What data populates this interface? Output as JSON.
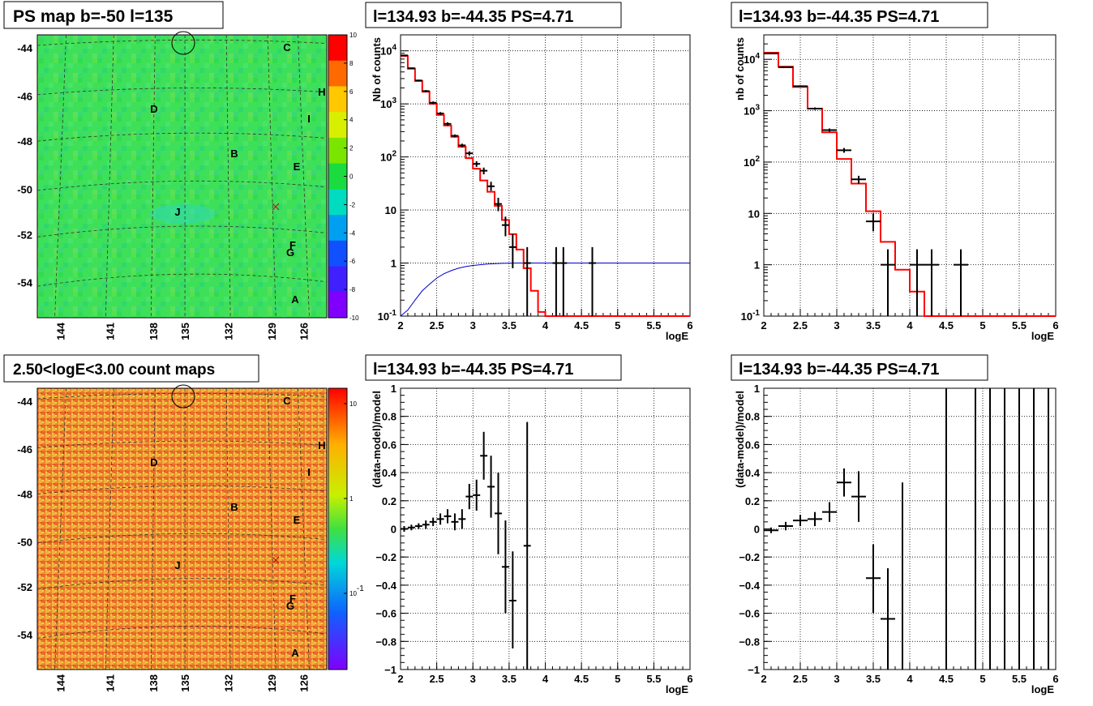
{
  "panels": {
    "ps_map": {
      "title": "PS map b=-50 l=135",
      "y_ticks": [
        "-44",
        "-46",
        "-48",
        "-50",
        "-52",
        "-54"
      ],
      "x_ticks": [
        "144",
        "141",
        "138",
        "135",
        "132",
        "129",
        "126"
      ],
      "colorbar_ticks": [
        "10",
        "8",
        "6",
        "4",
        "2",
        "0",
        "-2",
        "-4",
        "-6",
        "-8",
        "-10"
      ],
      "colorbar_colors": [
        "#ff0000",
        "#ff6a00",
        "#ffc800",
        "#d8f000",
        "#7ae600",
        "#1adc40",
        "#00dcc0",
        "#00a0f0",
        "#1050ff",
        "#4020ff",
        "#8000ff"
      ],
      "source_labels": [
        "C",
        "H",
        "D",
        "I",
        "B",
        "E",
        "J",
        "F",
        "G",
        "A"
      ]
    },
    "count_map": {
      "title": "2.50<logE<3.00 count maps",
      "y_ticks": [
        "-44",
        "-46",
        "-48",
        "-50",
        "-52",
        "-54"
      ],
      "x_ticks": [
        "144",
        "141",
        "138",
        "135",
        "132",
        "129",
        "126"
      ],
      "colorbar_ticks": [
        "10",
        "1",
        "10^-1"
      ],
      "source_labels": [
        "C",
        "H",
        "D",
        "I",
        "B",
        "E",
        "J",
        "F",
        "G",
        "A"
      ]
    }
  },
  "chart_data": [
    {
      "type": "line",
      "title": "l=134.93 b=-44.35 PS=4.71",
      "xlabel": "logE",
      "ylabel": "Nb of counts",
      "xlim": [
        2,
        6
      ],
      "ylim": [
        0.1,
        20000
      ],
      "yscale": "log",
      "grid": true,
      "x_ticks": [
        "2",
        "2.5",
        "3",
        "3.5",
        "4",
        "4.5",
        "5",
        "5.5",
        "6"
      ],
      "y_ticks": [
        "10^-1",
        "1",
        "10",
        "10^2",
        "10^3",
        "10^4"
      ],
      "model_steps": {
        "bin_edges": [
          2.0,
          2.1,
          2.2,
          2.3,
          2.4,
          2.5,
          2.6,
          2.7,
          2.8,
          2.9,
          3.0,
          3.1,
          3.2,
          3.3,
          3.4,
          3.5,
          3.6,
          3.7,
          3.8,
          3.9,
          4.0,
          6.0
        ],
        "values": [
          8000,
          4600,
          2700,
          1700,
          1000,
          620,
          390,
          240,
          155,
          95,
          60,
          36,
          22,
          12,
          6.5,
          3.5,
          1.8,
          0.8,
          0.3,
          0.12,
          0.1
        ]
      },
      "data_points": [
        {
          "x": 2.05,
          "y": 8200,
          "xerr": 0.05,
          "ylo": 8000,
          "yhi": 8400
        },
        {
          "x": 2.15,
          "y": 4700,
          "xerr": 0.05,
          "ylo": 4560,
          "yhi": 4840
        },
        {
          "x": 2.25,
          "y": 2760,
          "xerr": 0.05,
          "ylo": 2660,
          "yhi": 2860
        },
        {
          "x": 2.35,
          "y": 1740,
          "xerr": 0.05,
          "ylo": 1660,
          "yhi": 1820
        },
        {
          "x": 2.45,
          "y": 1050,
          "xerr": 0.05,
          "ylo": 990,
          "yhi": 1110
        },
        {
          "x": 2.55,
          "y": 660,
          "xerr": 0.05,
          "ylo": 620,
          "yhi": 700
        },
        {
          "x": 2.65,
          "y": 420,
          "xerr": 0.05,
          "ylo": 390,
          "yhi": 450
        },
        {
          "x": 2.75,
          "y": 250,
          "xerr": 0.05,
          "ylo": 234,
          "yhi": 266
        },
        {
          "x": 2.85,
          "y": 165,
          "xerr": 0.05,
          "ylo": 152,
          "yhi": 178
        },
        {
          "x": 2.95,
          "y": 117,
          "xerr": 0.05,
          "ylo": 106,
          "yhi": 128
        },
        {
          "x": 3.05,
          "y": 74,
          "xerr": 0.05,
          "ylo": 65,
          "yhi": 83
        },
        {
          "x": 3.15,
          "y": 55,
          "xerr": 0.05,
          "ylo": 47,
          "yhi": 63
        },
        {
          "x": 3.25,
          "y": 28,
          "xerr": 0.05,
          "ylo": 23,
          "yhi": 34
        },
        {
          "x": 3.35,
          "y": 13,
          "xerr": 0.05,
          "ylo": 9.5,
          "yhi": 17
        },
        {
          "x": 3.45,
          "y": 5.2,
          "xerr": 0.05,
          "ylo": 3.2,
          "yhi": 7.5
        },
        {
          "x": 3.55,
          "y": 2.0,
          "xerr": 0.05,
          "ylo": 0.8,
          "yhi": 3.5
        },
        {
          "x": 3.75,
          "y": 1.0,
          "xerr": 0.05,
          "ylo": 0.1,
          "yhi": 2.0
        },
        {
          "x": 4.15,
          "y": 1.0,
          "xerr": 0.05,
          "ylo": 0.1,
          "yhi": 2.0
        },
        {
          "x": 4.25,
          "y": 1.0,
          "xerr": 0.05,
          "ylo": 0.1,
          "yhi": 2.0
        },
        {
          "x": 4.65,
          "y": 1.0,
          "xerr": 0.05,
          "ylo": 0.1,
          "yhi": 2.0
        }
      ],
      "efficiency_curve": {
        "x": [
          2.0,
          2.1,
          2.2,
          2.3,
          2.4,
          2.5,
          2.6,
          2.7,
          2.8,
          2.9,
          3.0,
          3.2,
          3.4,
          3.6,
          4.0,
          6.0
        ],
        "y": [
          0.1,
          0.13,
          0.2,
          0.3,
          0.4,
          0.52,
          0.63,
          0.72,
          0.8,
          0.86,
          0.9,
          0.96,
          0.99,
          1.0,
          1.0,
          1.0
        ]
      },
      "colors": {
        "model": "#ff0000",
        "data": "#000000",
        "efficiency": "#0000cc"
      }
    },
    {
      "type": "line",
      "title": "l=134.93 b=-44.35 PS=4.71",
      "xlabel": "logE",
      "ylabel": "nb of counts",
      "xlim": [
        2,
        6
      ],
      "ylim": [
        0.1,
        30000
      ],
      "yscale": "log",
      "grid": true,
      "x_ticks": [
        "2",
        "2.5",
        "3",
        "3.5",
        "4",
        "4.5",
        "5",
        "5.5",
        "6"
      ],
      "y_ticks": [
        "10^-1",
        "1",
        "10",
        "10^2",
        "10^3",
        "10^4"
      ],
      "model_steps": {
        "bin_edges": [
          2.0,
          2.2,
          2.4,
          2.6,
          2.8,
          3.0,
          3.2,
          3.4,
          3.6,
          3.8,
          4.0,
          4.2,
          6.0
        ],
        "values": [
          13500,
          7200,
          2900,
          1100,
          380,
          115,
          38,
          11,
          2.8,
          0.8,
          0.3,
          0.1
        ]
      },
      "data_points": [
        {
          "x": 2.1,
          "y": 13000,
          "xerr": 0.1,
          "ylo": 12700,
          "yhi": 13300
        },
        {
          "x": 2.3,
          "y": 7000,
          "xerr": 0.1,
          "ylo": 6800,
          "yhi": 7200
        },
        {
          "x": 2.5,
          "y": 3000,
          "xerr": 0.1,
          "ylo": 2880,
          "yhi": 3120
        },
        {
          "x": 2.7,
          "y": 1100,
          "xerr": 0.1,
          "ylo": 1040,
          "yhi": 1160
        },
        {
          "x": 2.9,
          "y": 420,
          "xerr": 0.1,
          "ylo": 390,
          "yhi": 450
        },
        {
          "x": 3.1,
          "y": 170,
          "xerr": 0.1,
          "ylo": 152,
          "yhi": 188
        },
        {
          "x": 3.3,
          "y": 46,
          "xerr": 0.1,
          "ylo": 38,
          "yhi": 54
        },
        {
          "x": 3.5,
          "y": 7.0,
          "xerr": 0.1,
          "ylo": 4.5,
          "yhi": 10
        },
        {
          "x": 3.7,
          "y": 1.0,
          "xerr": 0.1,
          "ylo": 0.1,
          "yhi": 2.0
        },
        {
          "x": 4.1,
          "y": 1.0,
          "xerr": 0.1,
          "ylo": 0.1,
          "yhi": 2.0
        },
        {
          "x": 4.3,
          "y": 1.0,
          "xerr": 0.1,
          "ylo": 0.1,
          "yhi": 2.0
        },
        {
          "x": 4.7,
          "y": 1.0,
          "xerr": 0.1,
          "ylo": 0.1,
          "yhi": 2.0
        }
      ],
      "colors": {
        "model": "#ff0000",
        "data": "#000000"
      }
    },
    {
      "type": "scatter",
      "title": "l=134.93 b=-44.35 PS=4.71",
      "xlabel": "logE",
      "ylabel": "(data-model)/model",
      "xlim": [
        2,
        6
      ],
      "ylim": [
        -1,
        1
      ],
      "grid": true,
      "x_ticks": [
        "2",
        "2.5",
        "3",
        "3.5",
        "4",
        "4.5",
        "5",
        "5.5",
        "6"
      ],
      "y_ticks": [
        "1",
        "0.8",
        "0.6",
        "0.4",
        "0.2",
        "0",
        "−0.2",
        "−0.4",
        "−0.6",
        "−0.8",
        "−1"
      ],
      "data_points": [
        {
          "x": 2.05,
          "y": 0.0,
          "xerr": 0.05,
          "ylo": -0.02,
          "yhi": 0.02
        },
        {
          "x": 2.15,
          "y": 0.01,
          "xerr": 0.05,
          "ylo": -0.01,
          "yhi": 0.03
        },
        {
          "x": 2.25,
          "y": 0.02,
          "xerr": 0.05,
          "ylo": 0.0,
          "yhi": 0.04
        },
        {
          "x": 2.35,
          "y": 0.03,
          "xerr": 0.05,
          "ylo": 0.0,
          "yhi": 0.06
        },
        {
          "x": 2.45,
          "y": 0.05,
          "xerr": 0.05,
          "ylo": 0.02,
          "yhi": 0.08
        },
        {
          "x": 2.55,
          "y": 0.07,
          "xerr": 0.05,
          "ylo": 0.03,
          "yhi": 0.11
        },
        {
          "x": 2.65,
          "y": 0.09,
          "xerr": 0.05,
          "ylo": 0.04,
          "yhi": 0.14
        },
        {
          "x": 2.75,
          "y": 0.05,
          "xerr": 0.05,
          "ylo": -0.01,
          "yhi": 0.11
        },
        {
          "x": 2.85,
          "y": 0.07,
          "xerr": 0.05,
          "ylo": 0.0,
          "yhi": 0.14
        },
        {
          "x": 2.95,
          "y": 0.23,
          "xerr": 0.05,
          "ylo": 0.14,
          "yhi": 0.32
        },
        {
          "x": 3.05,
          "y": 0.24,
          "xerr": 0.05,
          "ylo": 0.13,
          "yhi": 0.35
        },
        {
          "x": 3.15,
          "y": 0.52,
          "xerr": 0.05,
          "ylo": 0.35,
          "yhi": 0.69
        },
        {
          "x": 3.25,
          "y": 0.3,
          "xerr": 0.05,
          "ylo": 0.08,
          "yhi": 0.52
        },
        {
          "x": 3.35,
          "y": 0.11,
          "xerr": 0.05,
          "ylo": -0.18,
          "yhi": 0.4
        },
        {
          "x": 3.45,
          "y": -0.27,
          "xerr": 0.05,
          "ylo": -0.6,
          "yhi": 0.06
        },
        {
          "x": 3.55,
          "y": -0.51,
          "xerr": 0.05,
          "ylo": -0.85,
          "yhi": -0.16
        },
        {
          "x": 3.75,
          "y": -0.12,
          "xerr": 0.05,
          "ylo": -1.0,
          "yhi": 0.76
        }
      ],
      "colors": {
        "data": "#000000"
      }
    },
    {
      "type": "scatter",
      "title": "l=134.93 b=-44.35 PS=4.71",
      "xlabel": "logE",
      "ylabel": "(data-model)/model",
      "xlim": [
        2,
        6
      ],
      "ylim": [
        -1,
        1
      ],
      "grid": true,
      "x_ticks": [
        "2",
        "2.5",
        "3",
        "3.5",
        "4",
        "4.5",
        "5",
        "5.5",
        "6"
      ],
      "y_ticks": [
        "1",
        "0.8",
        "0.6",
        "0.4",
        "0.2",
        "0",
        "−0.2",
        "−0.4",
        "−0.6",
        "−0.8",
        "−1"
      ],
      "data_points": [
        {
          "x": 2.1,
          "y": -0.01,
          "xerr": 0.1,
          "ylo": -0.03,
          "yhi": 0.01
        },
        {
          "x": 2.3,
          "y": 0.02,
          "xerr": 0.1,
          "ylo": -0.01,
          "yhi": 0.05
        },
        {
          "x": 2.5,
          "y": 0.06,
          "xerr": 0.1,
          "ylo": 0.02,
          "yhi": 0.1
        },
        {
          "x": 2.7,
          "y": 0.07,
          "xerr": 0.1,
          "ylo": 0.02,
          "yhi": 0.12
        },
        {
          "x": 2.9,
          "y": 0.12,
          "xerr": 0.1,
          "ylo": 0.05,
          "yhi": 0.19
        },
        {
          "x": 3.1,
          "y": 0.33,
          "xerr": 0.1,
          "ylo": 0.23,
          "yhi": 0.43
        },
        {
          "x": 3.3,
          "y": 0.23,
          "xerr": 0.1,
          "ylo": 0.05,
          "yhi": 0.41
        },
        {
          "x": 3.5,
          "y": -0.35,
          "xerr": 0.1,
          "ylo": -0.6,
          "yhi": -0.11
        },
        {
          "x": 3.7,
          "y": -0.64,
          "xerr": 0.1,
          "ylo": -1.0,
          "yhi": -0.28
        },
        {
          "x": 3.9,
          "y": -0.35,
          "xerr": 0.0,
          "ylo": -1.0,
          "yhi": 0.33
        },
        {
          "x": 4.5,
          "y": 0.0,
          "xerr": 0.0,
          "ylo": -1.0,
          "yhi": 1.0
        },
        {
          "x": 4.9,
          "y": 0.0,
          "xerr": 0.0,
          "ylo": -1.0,
          "yhi": 1.0
        },
        {
          "x": 5.1,
          "y": 0.0,
          "xerr": 0.0,
          "ylo": -1.0,
          "yhi": 1.0
        },
        {
          "x": 5.3,
          "y": 0.0,
          "xerr": 0.0,
          "ylo": -1.0,
          "yhi": 1.0
        },
        {
          "x": 5.5,
          "y": 0.0,
          "xerr": 0.0,
          "ylo": -1.0,
          "yhi": 1.0
        },
        {
          "x": 5.7,
          "y": 0.0,
          "xerr": 0.0,
          "ylo": -1.0,
          "yhi": 1.0
        },
        {
          "x": 5.9,
          "y": 0.0,
          "xerr": 0.0,
          "ylo": -1.0,
          "yhi": 1.0
        }
      ],
      "colors": {
        "data": "#000000"
      }
    }
  ]
}
